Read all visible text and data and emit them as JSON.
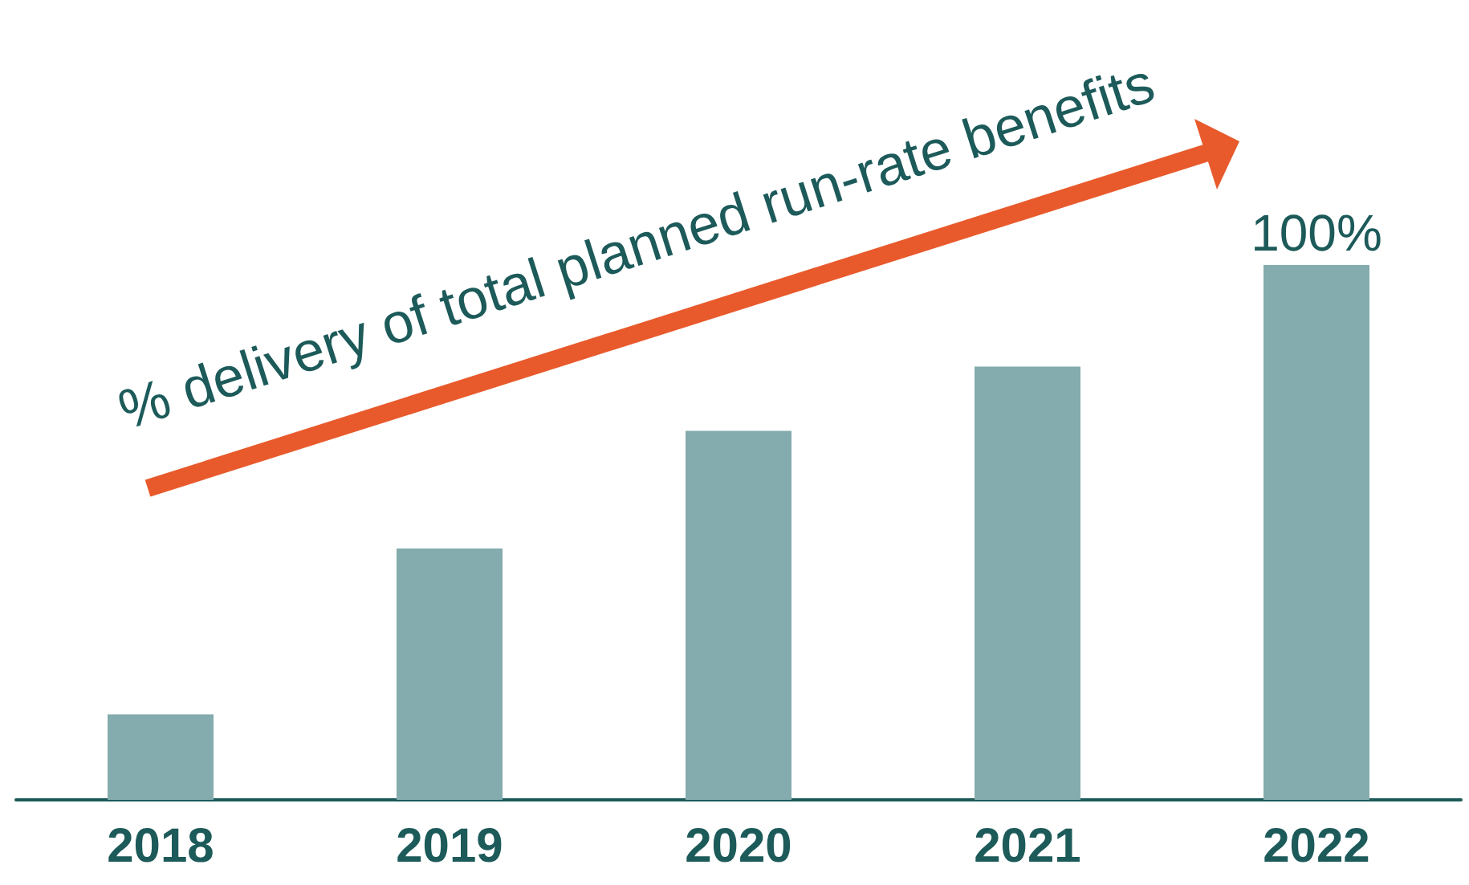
{
  "chart_data": {
    "type": "bar",
    "categories": [
      "2018",
      "2019",
      "2020",
      "2021",
      "2022"
    ],
    "values": [
      16,
      47,
      69,
      81,
      100
    ],
    "value_labels": [
      null,
      null,
      null,
      null,
      "100%"
    ],
    "color": "#84abad",
    "annotations": [
      "% delivery of total planned run-rate benefits"
    ]
  }
}
